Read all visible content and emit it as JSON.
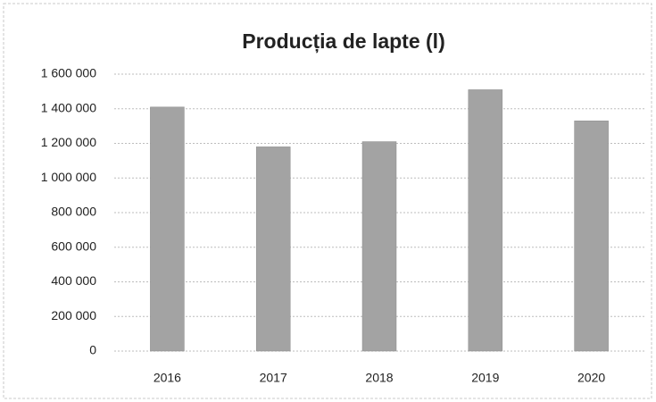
{
  "chart_data": {
    "type": "bar",
    "title": "Producția de lapte (l)",
    "categories": [
      "2016",
      "2017",
      "2018",
      "2019",
      "2020"
    ],
    "values": [
      1410000,
      1180000,
      1210000,
      1510000,
      1330000
    ],
    "color": "#a3a3a3",
    "ylim": [
      0,
      1600000
    ],
    "yticks": [
      0,
      {
        "value": 200000,
        "label": "200 000"
      },
      {
        "value": 400000,
        "label": "400 000"
      },
      {
        "value": 600000,
        "label": "600 000"
      },
      {
        "value": 800000,
        "label": "800 000"
      },
      {
        "value": 1000000,
        "label": "1 000 000"
      },
      {
        "value": 1200000,
        "label": "1 200 000"
      },
      {
        "value": 1400000,
        "label": "1 400 000"
      },
      {
        "value": 1600000,
        "label": "1 600 000"
      }
    ],
    "grid": true
  }
}
